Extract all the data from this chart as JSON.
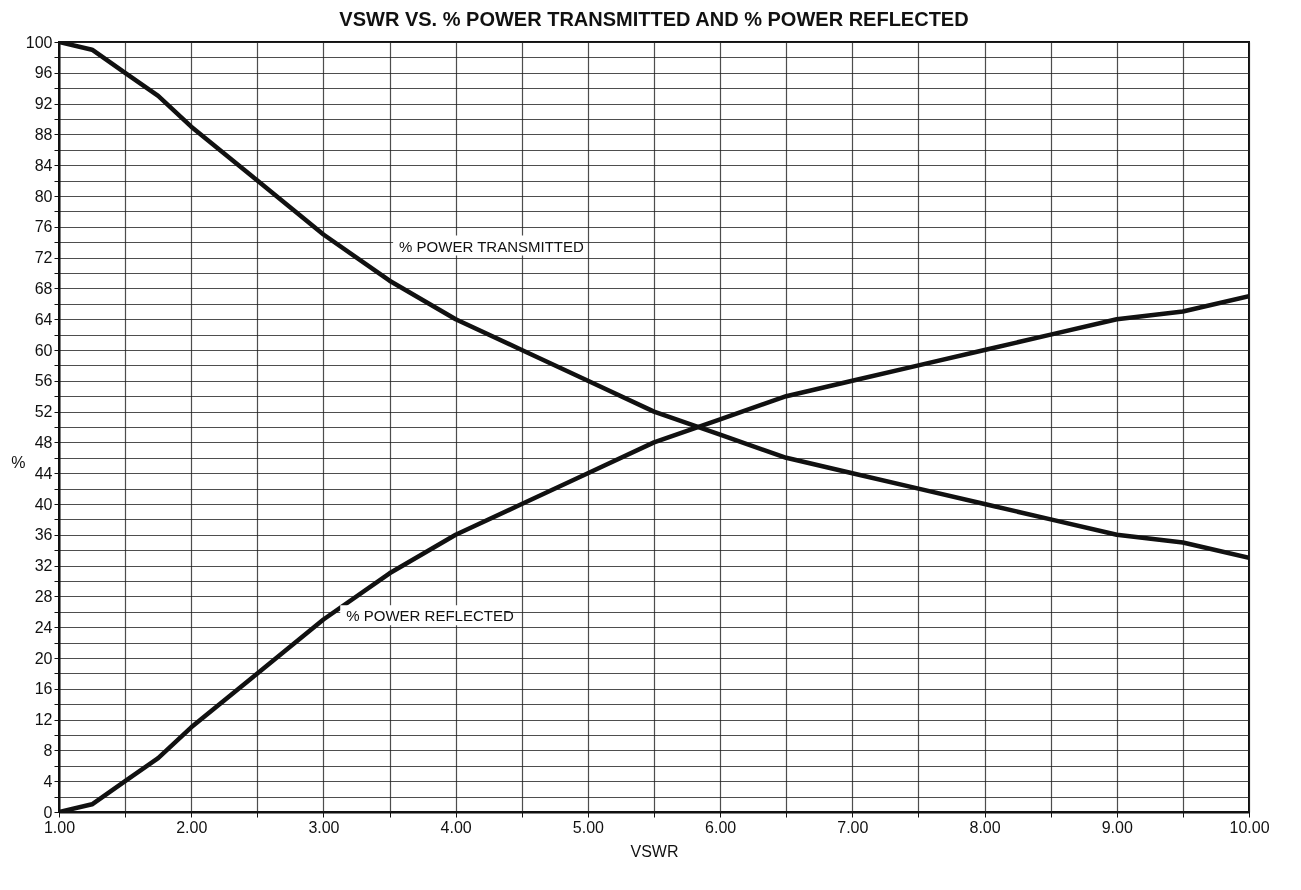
{
  "chart_data": {
    "type": "line",
    "title": "VSWR VS. % POWER TRANSMITTED AND % POWER REFLECTED",
    "xlabel": "VSWR",
    "ylabel": "%",
    "x": [
      1,
      1.25,
      1.5,
      1.75,
      2,
      2.5,
      3,
      3.5,
      4,
      4.5,
      5,
      5.5,
      6,
      6.5,
      7,
      7.5,
      8,
      8.5,
      9,
      9.5,
      10
    ],
    "series": [
      {
        "color": "#111111",
        "values": [
          100,
          99,
          96,
          93,
          89,
          82,
          75,
          69,
          64,
          60,
          56,
          52,
          49,
          46,
          44,
          42,
          40,
          38,
          36,
          35,
          33
        ]
      },
      {
        "color": "#111111",
        "values": [
          0,
          1,
          4,
          7,
          11,
          18,
          25,
          31,
          36,
          40,
          44,
          48,
          51,
          54,
          56,
          58,
          60,
          62,
          64,
          65,
          67
        ]
      }
    ],
    "annotations": [
      {
        "text": "% POWER TRANSMITTED",
        "x": 3.3,
        "y": 72
      },
      {
        "text": "% POWER REFLECTED",
        "x": 2.9,
        "y": 24
      }
    ],
    "xlim": [
      1,
      10
    ],
    "xticks": [
      {
        "value": 1,
        "label": "1.00"
      },
      {
        "value": 1.5,
        "label": null
      },
      {
        "value": 2,
        "label": "2.00"
      },
      {
        "value": 2.5,
        "label": null
      },
      {
        "value": 3,
        "label": "3.00"
      },
      {
        "value": 3.5,
        "label": null
      },
      {
        "value": 4,
        "label": "4.00"
      },
      {
        "value": 4.5,
        "label": null
      },
      {
        "value": 5,
        "label": "5.00"
      },
      {
        "value": 5.5,
        "label": null
      },
      {
        "value": 6,
        "label": "6.00"
      },
      {
        "value": 6.5,
        "label": null
      },
      {
        "value": 7,
        "label": "7.00"
      },
      {
        "value": 7.5,
        "label": null
      },
      {
        "value": 8,
        "label": "8.00"
      },
      {
        "value": 8.5,
        "label": null
      },
      {
        "value": 9,
        "label": "9.00"
      },
      {
        "value": 9.5,
        "label": null
      },
      {
        "value": 10,
        "label": "10.00"
      }
    ],
    "ylim": [
      0,
      100
    ],
    "yticks": [
      0,
      {
        "value": 2,
        "label": null
      },
      4,
      {
        "value": 6,
        "label": null
      },
      8,
      {
        "value": 10,
        "label": null
      },
      12,
      {
        "value": 14,
        "label": null
      },
      16,
      {
        "value": 18,
        "label": null
      },
      20,
      {
        "value": 22,
        "label": null
      },
      24,
      {
        "value": 26,
        "label": null
      },
      28,
      {
        "value": 30,
        "label": null
      },
      32,
      {
        "value": 34,
        "label": null
      },
      36,
      {
        "value": 38,
        "label": null
      },
      40,
      {
        "value": 42,
        "label": null
      },
      44,
      {
        "value": 46,
        "label": null
      },
      48,
      {
        "value": 50,
        "label": null
      },
      52,
      {
        "value": 54,
        "label": null
      },
      56,
      {
        "value": 58,
        "label": null
      },
      60,
      {
        "value": 62,
        "label": null
      },
      64,
      {
        "value": 66,
        "label": null
      },
      68,
      {
        "value": 70,
        "label": null
      },
      72,
      {
        "value": 74,
        "label": null
      },
      76,
      {
        "value": 78,
        "label": null
      },
      80,
      {
        "value": 82,
        "label": null
      },
      84,
      {
        "value": 86,
        "label": null
      },
      88,
      {
        "value": 90,
        "label": null
      },
      92,
      {
        "value": 94,
        "label": null
      },
      96,
      {
        "value": 98,
        "label": null
      },
      100
    ],
    "grid": true,
    "marker": "none",
    "line_style": "solid"
  }
}
